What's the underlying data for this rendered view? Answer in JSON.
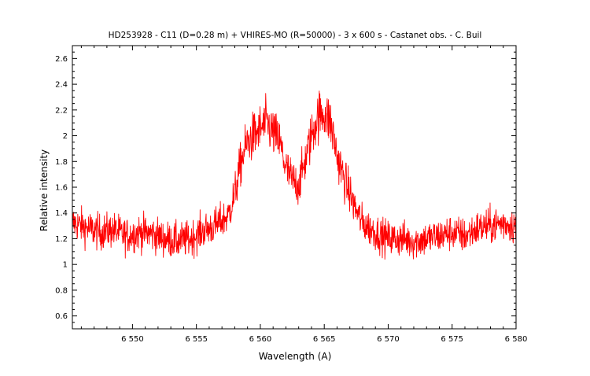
{
  "chart_data": {
    "type": "line",
    "title": "HD253928 - C11 (D=0.28 m) + VHIRES-MO (R=50000) - 3 x 600 s - Castanet obs. - C. Buil",
    "xlabel": "Wavelength (A)",
    "ylabel": "Relative intensity",
    "xlim": [
      6545.3,
      6580
    ],
    "ylim": [
      0.5,
      2.7
    ],
    "x_ticks": [
      6550,
      6555,
      6560,
      6565,
      6570,
      6575,
      6580
    ],
    "x_tick_labels": [
      "6 550",
      "6 555",
      "6 560",
      "6 565",
      "6 570",
      "6 575",
      "6 580"
    ],
    "y_ticks": [
      0.6,
      0.8,
      1,
      1.2,
      1.4,
      1.6,
      1.8,
      2,
      2.2,
      2.4,
      2.6
    ],
    "y_tick_labels": [
      "0.6",
      "0.8",
      "1",
      "1.2",
      "1.4",
      "1.6",
      "1.8",
      "2",
      "2.2",
      "2.4",
      "2.6"
    ],
    "grid": false,
    "series": [
      {
        "color": "#ff0000",
        "x": [
          6545.5,
          6546.5,
          6547.5,
          6548.5,
          6549.5,
          6550.5,
          6551.5,
          6552.5,
          6553.5,
          6554.5,
          6555.5,
          6556.5,
          6557.5,
          6558.0,
          6558.5,
          6559.0,
          6559.5,
          6560.0,
          6560.5,
          6561.0,
          6561.5,
          6562.0,
          6562.5,
          6563.0,
          6563.5,
          6564.0,
          6564.5,
          6565.0,
          6565.5,
          6566.0,
          6566.5,
          6567.0,
          6567.5,
          6568.0,
          6569.0,
          6570.0,
          6571.0,
          6572.0,
          6573.0,
          6574.0,
          6575.0,
          6576.0,
          6577.0,
          6578.0,
          6579.0,
          6580.0
        ],
        "y": [
          1.32,
          1.28,
          1.25,
          1.27,
          1.22,
          1.25,
          1.24,
          1.2,
          1.18,
          1.2,
          1.26,
          1.3,
          1.38,
          1.55,
          1.8,
          1.95,
          2.0,
          2.05,
          2.1,
          2.02,
          1.95,
          1.75,
          1.65,
          1.62,
          1.8,
          2.0,
          2.15,
          2.18,
          2.1,
          1.85,
          1.68,
          1.55,
          1.42,
          1.32,
          1.25,
          1.2,
          1.2,
          1.18,
          1.2,
          1.22,
          1.25,
          1.22,
          1.28,
          1.3,
          1.32,
          1.3
        ]
      }
    ]
  }
}
